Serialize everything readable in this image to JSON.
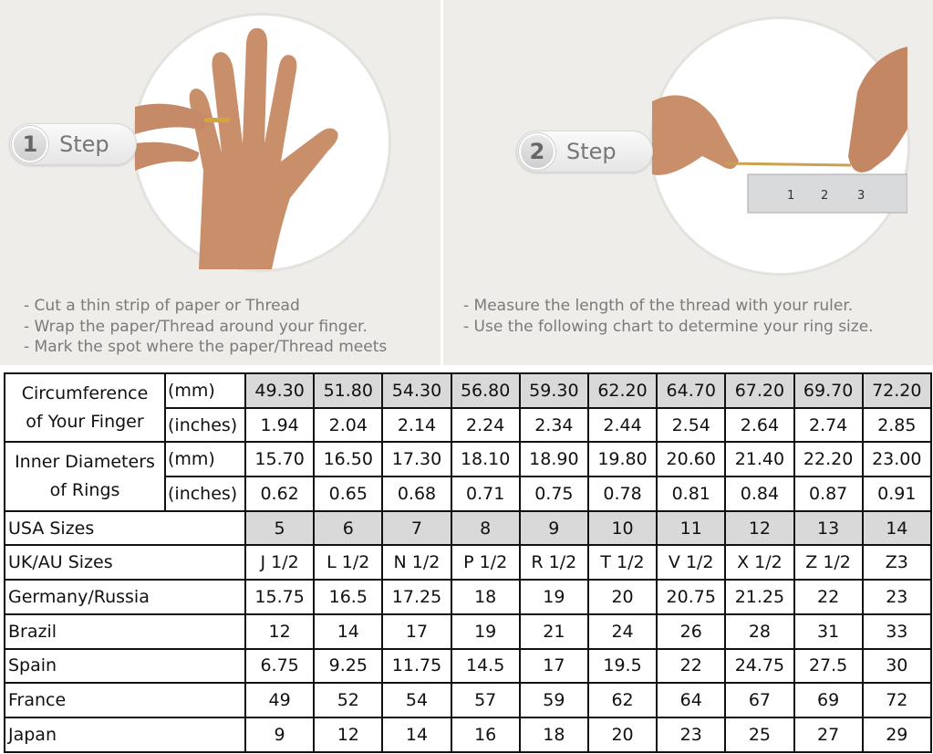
{
  "steps": [
    {
      "number": "1",
      "label": "Step",
      "instructions": [
        "Cut a thin strip of paper or Thread",
        "Wrap the paper/Thread around your finger.",
        "Mark the spot where the paper/Thread meets"
      ]
    },
    {
      "number": "2",
      "label": "Step",
      "instructions": [
        "Measure the length of the thread with your ruler.",
        "Use the following chart to determine your ring size."
      ]
    }
  ],
  "ruler_marks": [
    "1",
    "2",
    "3"
  ],
  "table": {
    "groups": [
      {
        "label_line1": "Circumference",
        "label_line2": "of Your Finger",
        "rows": [
          {
            "unit": "(mm)",
            "values": [
              "49.30",
              "51.80",
              "54.30",
              "56.80",
              "59.30",
              "62.20",
              "64.70",
              "67.20",
              "69.70",
              "72.20"
            ]
          },
          {
            "unit": "(inches)",
            "values": [
              "1.94",
              "2.04",
              "2.14",
              "2.24",
              "2.34",
              "2.44",
              "2.54",
              "2.64",
              "2.74",
              "2.85"
            ]
          }
        ]
      },
      {
        "label_line1": "Inner Diameters",
        "label_line2": "of Rings",
        "rows": [
          {
            "unit": "(mm)",
            "values": [
              "15.70",
              "16.50",
              "17.30",
              "18.10",
              "18.90",
              "19.80",
              "20.60",
              "21.40",
              "22.20",
              "23.00"
            ]
          },
          {
            "unit": "(inches)",
            "values": [
              "0.62",
              "0.65",
              "0.68",
              "0.71",
              "0.75",
              "0.78",
              "0.81",
              "0.84",
              "0.87",
              "0.91"
            ]
          }
        ]
      }
    ],
    "rows": [
      {
        "label": "USA Sizes",
        "values": [
          "5",
          "6",
          "7",
          "8",
          "9",
          "10",
          "11",
          "12",
          "13",
          "14"
        ]
      },
      {
        "label": "UK/AU Sizes",
        "values": [
          "J 1/2",
          "L 1/2",
          "N 1/2",
          "P 1/2",
          "R 1/2",
          "T 1/2",
          "V 1/2",
          "X 1/2",
          "Z 1/2",
          "Z3"
        ]
      },
      {
        "label": "Germany/Russia",
        "values": [
          "15.75",
          "16.5",
          "17.25",
          "18",
          "19",
          "20",
          "20.75",
          "21.25",
          "22",
          "23"
        ]
      },
      {
        "label": "Brazil",
        "values": [
          "12",
          "14",
          "17",
          "19",
          "21",
          "24",
          "26",
          "28",
          "31",
          "33"
        ]
      },
      {
        "label": "Spain",
        "values": [
          "6.75",
          "9.25",
          "11.75",
          "14.5",
          "17",
          "19.5",
          "22",
          "24.75",
          "27.5",
          "30"
        ]
      },
      {
        "label": "France",
        "values": [
          "49",
          "52",
          "54",
          "57",
          "59",
          "62",
          "64",
          "67",
          "69",
          "72"
        ]
      },
      {
        "label": "Japan",
        "values": [
          "9",
          "12",
          "14",
          "16",
          "18",
          "20",
          "23",
          "25",
          "27",
          "29"
        ]
      }
    ],
    "highlight_color": "#d9d9d9"
  }
}
